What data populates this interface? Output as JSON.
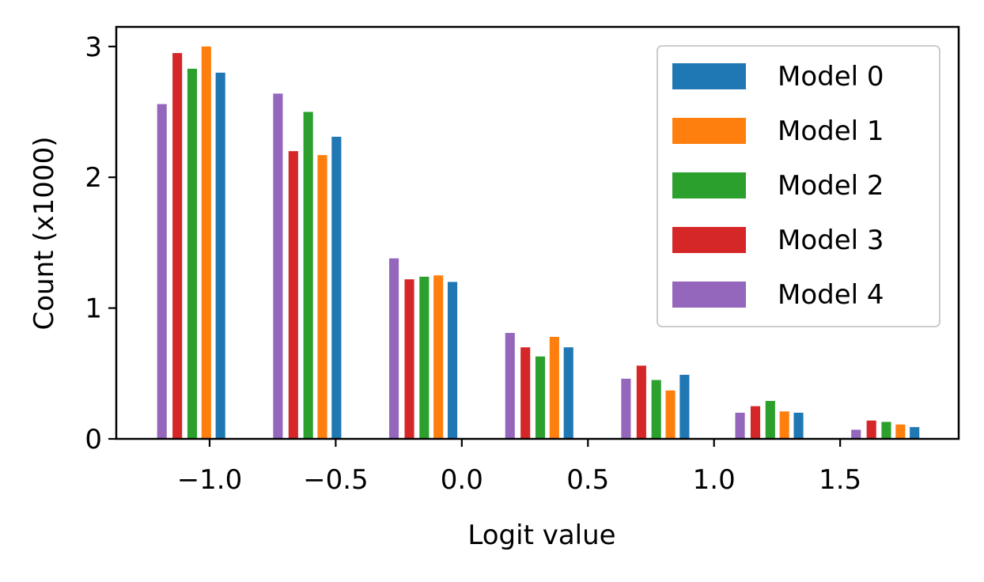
{
  "chart_data": {
    "type": "bar",
    "title": "",
    "xlabel": "Logit value",
    "ylabel": "Count (x1000)",
    "xlim": [
      -1.37,
      1.97
    ],
    "ylim": [
      0,
      3.15
    ],
    "x_ticks": [
      {
        "value": -1.0,
        "label": "−1.0"
      },
      {
        "value": -0.5,
        "label": "−0.5"
      },
      {
        "value": 0.0,
        "label": "0.0"
      },
      {
        "value": 0.5,
        "label": "0.5"
      },
      {
        "value": 1.0,
        "label": "1.0"
      },
      {
        "value": 1.5,
        "label": "1.5"
      }
    ],
    "y_ticks": [
      {
        "value": 0,
        "label": "0"
      },
      {
        "value": 1,
        "label": "1"
      },
      {
        "value": 2,
        "label": "2"
      },
      {
        "value": 3,
        "label": "3"
      }
    ],
    "grid": false,
    "legend_position": "top-right",
    "bar_width": 0.038,
    "series": [
      {
        "name": "Model 0",
        "color": "#1f77b4",
        "x": [
          -0.957,
          -0.497,
          -0.037,
          0.423,
          0.883,
          1.335,
          1.795
        ],
        "values": [
          2.8,
          2.31,
          1.2,
          0.7,
          0.49,
          0.2,
          0.09
        ]
      },
      {
        "name": "Model 1",
        "color": "#ff7f0e",
        "x": [
          -1.013,
          -0.553,
          -0.093,
          0.367,
          0.827,
          1.279,
          1.739
        ],
        "values": [
          3.0,
          2.17,
          1.25,
          0.78,
          0.37,
          0.21,
          0.11
        ]
      },
      {
        "name": "Model 2",
        "color": "#2ca02c",
        "x": [
          -1.069,
          -0.609,
          -0.149,
          0.311,
          0.771,
          1.223,
          1.683
        ],
        "values": [
          2.83,
          2.5,
          1.24,
          0.63,
          0.45,
          0.29,
          0.13
        ]
      },
      {
        "name": "Model 3",
        "color": "#d62728",
        "x": [
          -1.128,
          -0.668,
          -0.208,
          0.252,
          0.712,
          1.164,
          1.624
        ],
        "values": [
          2.95,
          2.2,
          1.22,
          0.7,
          0.56,
          0.25,
          0.14
        ]
      },
      {
        "name": "Model 4",
        "color": "#9467bd",
        "x": [
          -1.189,
          -0.729,
          -0.269,
          0.191,
          0.651,
          1.103,
          1.563
        ],
        "values": [
          2.56,
          2.64,
          1.38,
          0.81,
          0.46,
          0.2,
          0.07
        ]
      }
    ]
  }
}
